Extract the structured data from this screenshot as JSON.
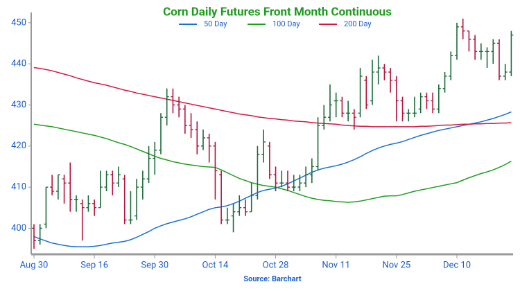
{
  "chart_data": {
    "type": "ohlc",
    "title": "Corn Daily Futures Front Month Continuous",
    "source": "Source: Barchart",
    "legend_position": "top",
    "grid": false,
    "up_color": "#1b6b3a",
    "down_color": "#b5123a",
    "categories": [
      "Aug 30",
      null,
      null,
      null,
      null,
      null,
      null,
      null,
      null,
      null,
      "Sep 16",
      null,
      null,
      null,
      null,
      null,
      null,
      null,
      null,
      null,
      "Sep 30",
      null,
      null,
      null,
      null,
      null,
      null,
      null,
      null,
      null,
      "Oct 14",
      null,
      null,
      null,
      null,
      null,
      null,
      null,
      null,
      null,
      "Oct 28",
      null,
      null,
      null,
      null,
      null,
      null,
      null,
      null,
      null,
      "Nov 11",
      null,
      null,
      null,
      null,
      null,
      null,
      null,
      null,
      null,
      "Nov 25",
      null,
      null,
      null,
      null,
      null,
      null,
      null,
      null,
      null,
      "Dec 10",
      null,
      null,
      null,
      null,
      null,
      null,
      null,
      null,
      null
    ],
    "open": [
      400,
      397,
      401,
      410,
      409,
      412,
      411,
      407,
      406,
      405,
      406,
      405,
      410,
      413,
      411,
      412,
      402,
      403,
      410,
      412,
      417,
      419,
      427,
      432,
      430,
      429,
      425,
      424,
      420,
      422,
      420,
      413,
      402,
      403,
      404,
      405,
      404,
      408,
      418,
      420,
      413,
      411,
      411,
      410,
      410,
      411,
      413,
      415,
      425,
      427,
      431,
      431,
      428,
      428,
      428,
      436,
      431,
      438,
      439,
      438,
      436,
      431,
      428,
      428,
      429,
      432,
      431,
      429,
      434,
      437,
      442,
      449,
      448,
      446,
      443,
      443,
      443,
      445,
      437,
      438
    ],
    "high": [
      401,
      401,
      410,
      413,
      413,
      413,
      416,
      408,
      407,
      408,
      407,
      414,
      414,
      414,
      415,
      413,
      409,
      412,
      414,
      420,
      421,
      428,
      434,
      434,
      432,
      430,
      428,
      426,
      424,
      423,
      421,
      414,
      405,
      406,
      408,
      407,
      411,
      420,
      424,
      421,
      415,
      414,
      414,
      413,
      413,
      415,
      417,
      427,
      430,
      435,
      433,
      432,
      431,
      429,
      439,
      437,
      441,
      442,
      440,
      439,
      437,
      432,
      429,
      432,
      433,
      433,
      433,
      435,
      438,
      443,
      450,
      451,
      448,
      447,
      445,
      444,
      446,
      446,
      440,
      448
    ],
    "low": [
      395,
      396,
      400,
      408,
      407,
      406,
      404,
      404,
      397,
      404,
      403,
      405,
      409,
      408,
      410,
      401,
      401,
      402,
      407,
      411,
      413,
      418,
      425,
      428,
      427,
      423,
      422,
      418,
      419,
      416,
      407,
      401,
      401,
      399,
      403,
      403,
      404,
      407,
      416,
      412,
      409,
      410,
      409,
      409,
      409,
      410,
      411,
      414,
      424,
      426,
      427,
      427,
      426,
      424,
      427,
      429,
      430,
      435,
      436,
      433,
      426,
      426,
      426,
      427,
      428,
      429,
      428,
      428,
      433,
      436,
      441,
      446,
      443,
      441,
      441,
      439,
      440,
      436,
      436,
      437
    ],
    "close": [
      397,
      400,
      410,
      409,
      413,
      411,
      407,
      407,
      405,
      406,
      405,
      410,
      413,
      411,
      413,
      402,
      402,
      410,
      412,
      417,
      419,
      427,
      432,
      430,
      429,
      425,
      424,
      420,
      422,
      420,
      414,
      402,
      402,
      404,
      405,
      404,
      408,
      418,
      421,
      413,
      411,
      411,
      410,
      410,
      411,
      413,
      415,
      425,
      427,
      430,
      431,
      428,
      428,
      427,
      437,
      430,
      438,
      439,
      438,
      436,
      431,
      428,
      428,
      428,
      432,
      431,
      429,
      434,
      437,
      442,
      449,
      448,
      446,
      443,
      443,
      443,
      445,
      437,
      438,
      447
    ],
    "series": [
      {
        "name": "50 Day",
        "color": "#1a6fd6",
        "values": [
          398,
          397.4,
          396.9,
          396.4,
          396.1,
          395.8,
          395.6,
          395.5,
          395.5,
          395.5,
          395.6,
          395.8,
          396.1,
          396.4,
          396.6,
          396.8,
          397.2,
          397.8,
          398.5,
          399.2,
          400,
          400.6,
          401.1,
          401.5,
          401.9,
          402.3,
          402.8,
          403.4,
          404,
          404.6,
          405,
          405.2,
          405.5,
          406,
          406.6,
          407.3,
          408,
          408.7,
          409.2,
          409.5,
          409.8,
          410.2,
          410.8,
          411.5,
          412.2,
          412.9,
          413.6,
          414.2,
          414.6,
          414.9,
          415.2,
          415.6,
          416.1,
          416.7,
          417.4,
          418.2,
          418.9,
          419.5,
          420,
          420.4,
          420.7,
          421.1,
          421.6,
          422.1,
          422.6,
          423,
          423.4,
          423.8,
          424.1,
          424.4,
          424.7,
          425,
          425.3,
          425.6,
          425.9,
          426.3,
          426.7,
          427.2,
          427.7,
          428.3
        ]
      },
      {
        "name": "100 Day",
        "color": "#1e9e1e",
        "values": [
          425.3,
          425.1,
          424.9,
          424.7,
          424.4,
          424.1,
          423.8,
          423.5,
          423.2,
          422.9,
          422.6,
          422.2,
          421.8,
          421.3,
          420.8,
          420.4,
          419.9,
          419.3,
          418.7,
          418.1,
          417.5,
          417,
          416.6,
          416.2,
          415.9,
          415.6,
          415.4,
          415.2,
          415,
          414.9,
          414.8,
          414.2,
          413.5,
          412.8,
          412.1,
          411.6,
          411.1,
          410.7,
          410.4,
          410.2,
          410,
          409.6,
          409.2,
          408.7,
          408.2,
          407.7,
          407.3,
          407,
          406.8,
          406.7,
          406.5,
          406.4,
          406.3,
          406.4,
          406.6,
          406.9,
          407.2,
          407.5,
          407.8,
          407.9,
          407.9,
          408.2,
          408.6,
          409,
          409.3,
          409.6,
          409.9,
          410.2,
          410.5,
          410.8,
          411.1,
          411.7,
          412.3,
          412.8,
          413.3,
          413.7,
          414.2,
          414.8,
          415.5,
          416.3
        ]
      },
      {
        "name": "200 Day",
        "color": "#d4173f",
        "values": [
          439.1,
          438.9,
          438.6,
          438.3,
          437.9,
          437.5,
          437.1,
          436.6,
          436.2,
          435.8,
          435.4,
          435.1,
          434.8,
          434.4,
          434,
          433.6,
          433.3,
          432.9,
          432.6,
          432.3,
          432,
          431.7,
          431.4,
          431.1,
          430.8,
          430.5,
          430.2,
          429.9,
          429.6,
          429.3,
          429,
          428.7,
          428.4,
          428.1,
          427.8,
          427.6,
          427.4,
          427.1,
          426.9,
          426.7,
          426.6,
          426.4,
          426.3,
          426.1,
          426,
          425.9,
          425.7,
          425.6,
          425.5,
          425.4,
          425.3,
          425.1,
          425,
          424.9,
          424.8,
          424.8,
          424.7,
          424.7,
          424.7,
          424.7,
          424.7,
          424.7,
          424.7,
          424.7,
          424.8,
          424.8,
          424.9,
          425,
          425.1,
          425.1,
          425.2,
          425.3,
          425.3,
          425.4,
          425.4,
          425.5,
          425.5,
          425.6,
          425.6,
          425.7
        ]
      }
    ],
    "ylim": [
      394,
      452.5
    ],
    "yticks": [
      400,
      410,
      420,
      430,
      440,
      450
    ]
  }
}
